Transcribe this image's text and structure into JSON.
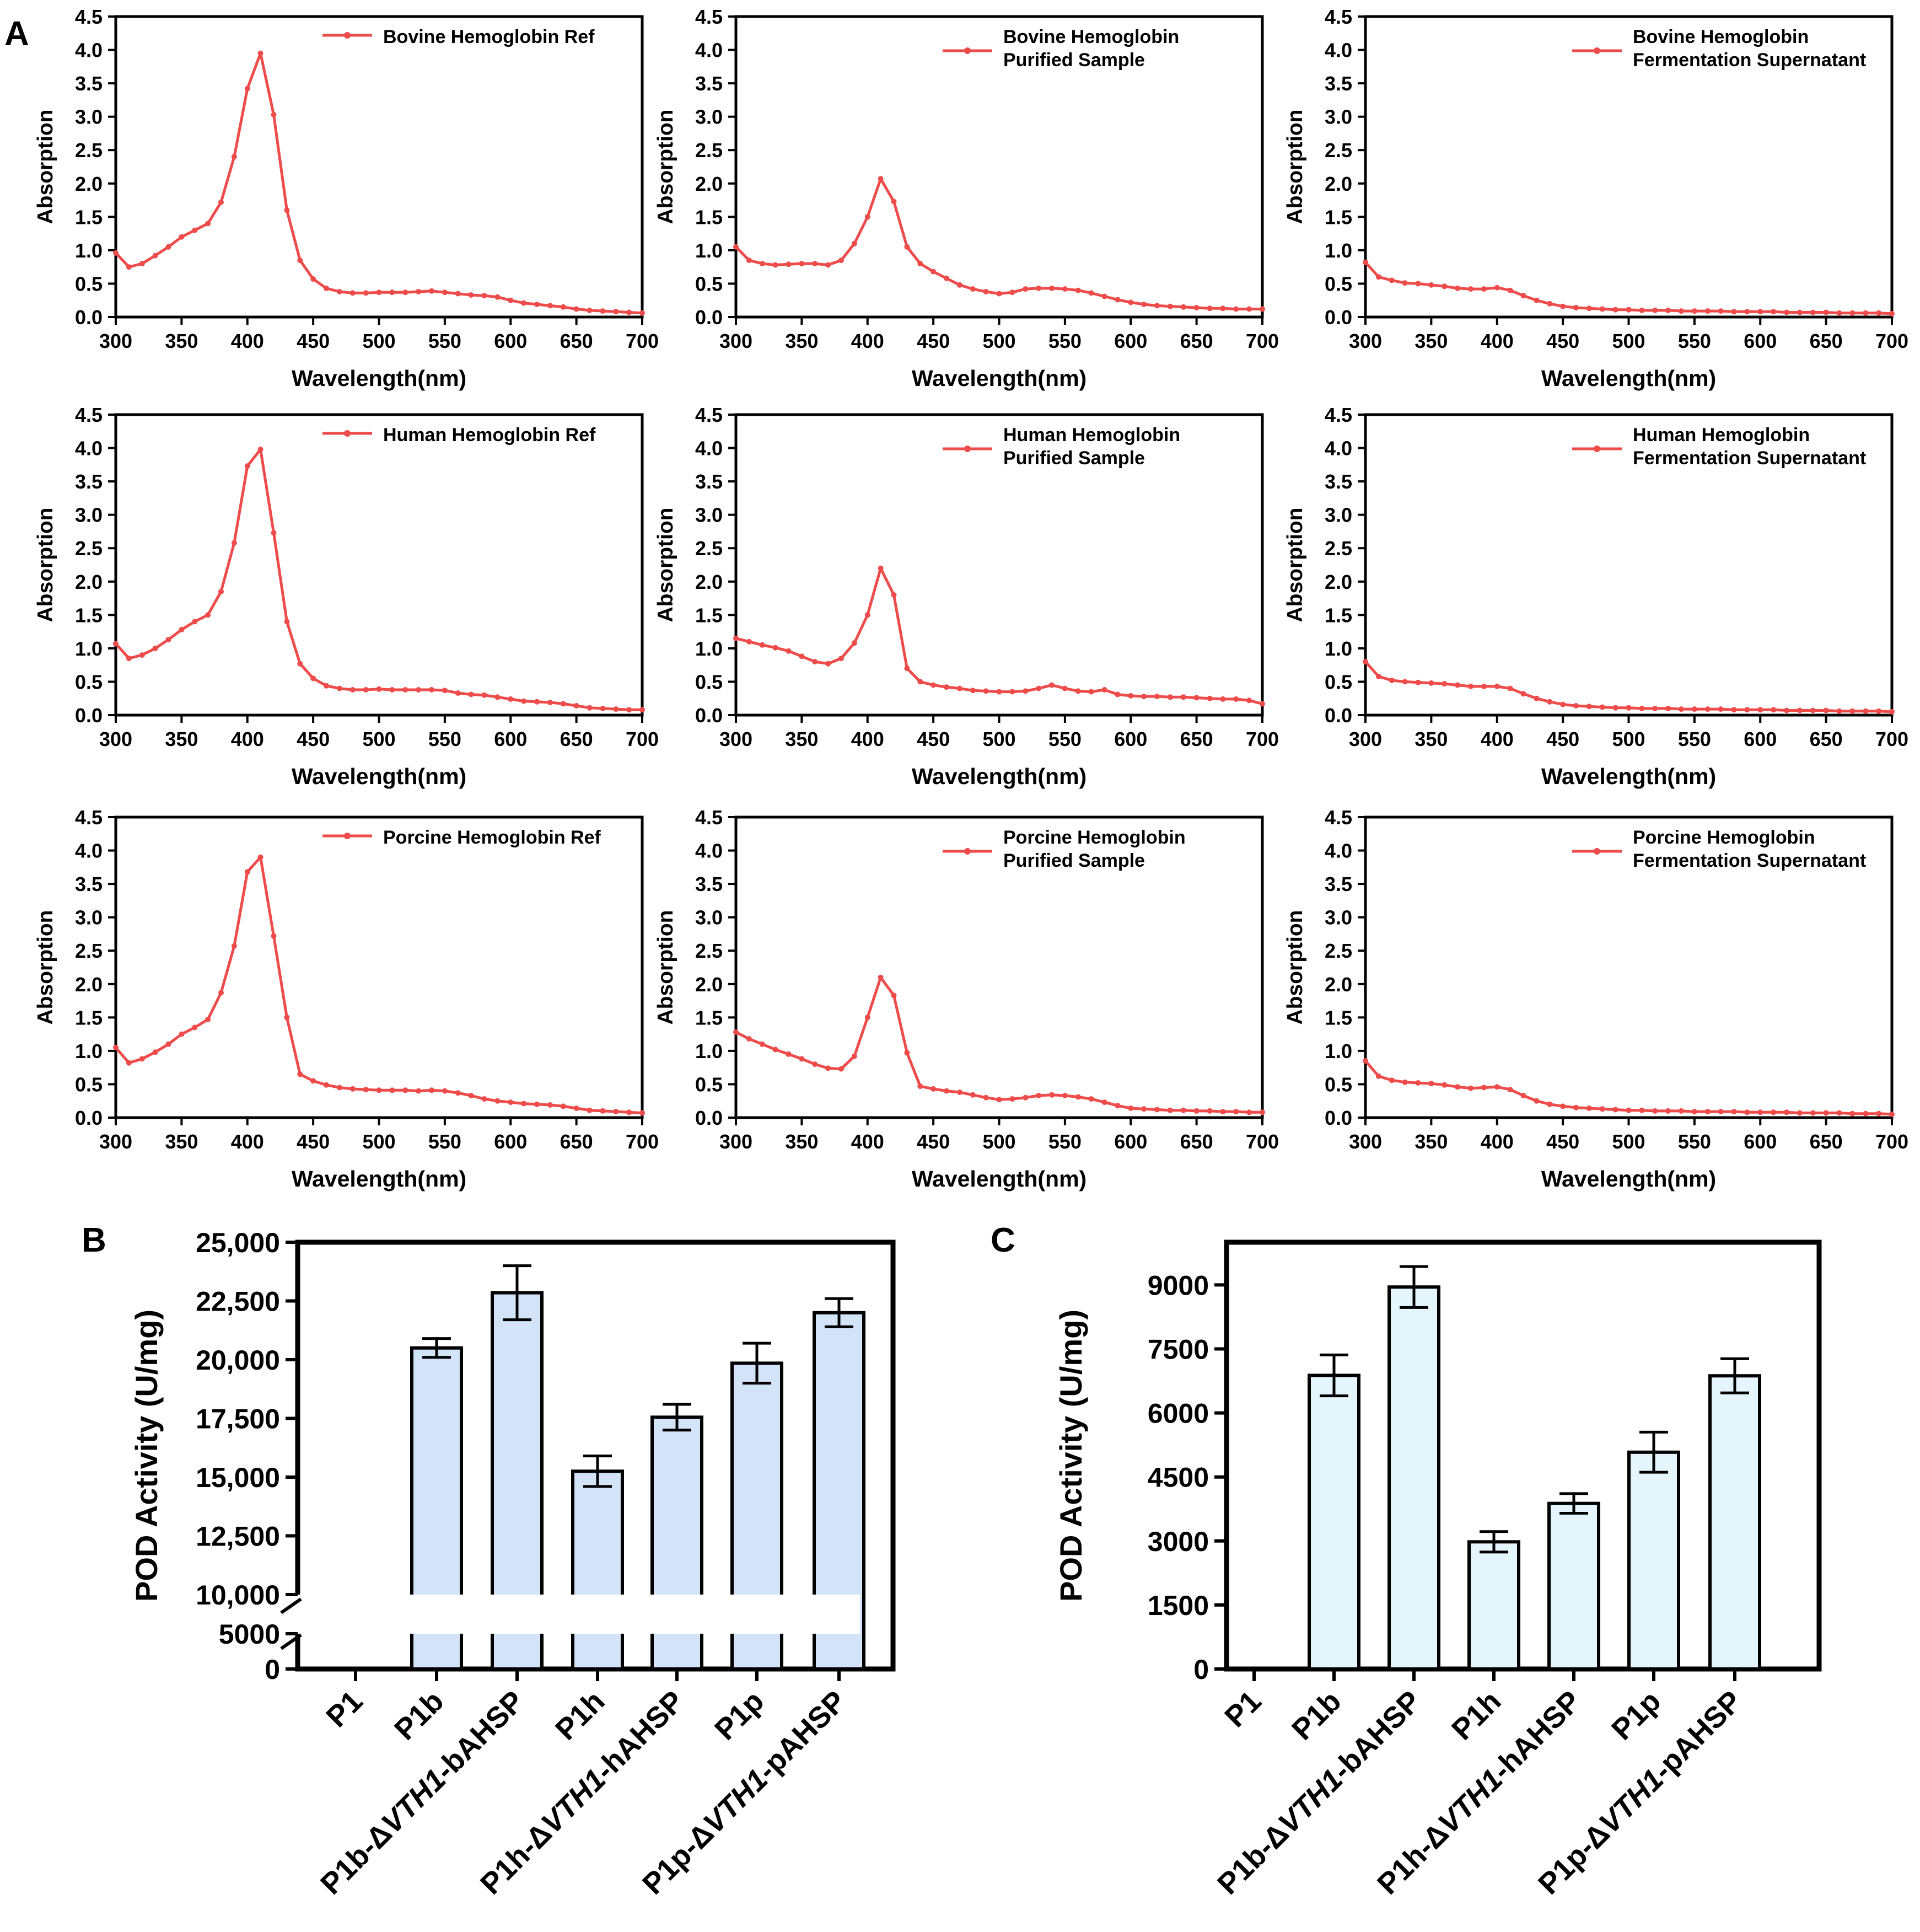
{
  "colors": {
    "line": "#EE4B4B",
    "barB": "#D3E3F8",
    "barC": "#E4F5FC",
    "axis": "#000000"
  },
  "panel_labels": {
    "A": "A",
    "B": "B",
    "C": "C"
  },
  "spectra_common": {
    "xlabel": "Wavelength(nm)",
    "ylabel": "Absorption",
    "xticks": [
      "300",
      "350",
      "400",
      "450",
      "500",
      "550",
      "600",
      "650",
      "700"
    ],
    "yticks": [
      "0.0",
      "0.5",
      "1.0",
      "1.5",
      "2.0",
      "2.5",
      "3.0",
      "3.5",
      "4.0",
      "4.5"
    ],
    "xlim": [
      300,
      700
    ],
    "ylim": [
      0,
      4.5
    ]
  },
  "chart_data": [
    {
      "type": "line",
      "legend": [
        "Bovine Hemoglobin Ref"
      ],
      "x_start": 300,
      "x_step": 10,
      "values": [
        0.96,
        0.75,
        0.8,
        0.92,
        1.05,
        1.2,
        1.3,
        1.4,
        1.72,
        2.4,
        3.42,
        3.95,
        3.03,
        1.6,
        0.85,
        0.57,
        0.43,
        0.38,
        0.36,
        0.36,
        0.37,
        0.37,
        0.37,
        0.38,
        0.39,
        0.37,
        0.35,
        0.33,
        0.32,
        0.3,
        0.25,
        0.21,
        0.19,
        0.17,
        0.15,
        0.12,
        0.1,
        0.09,
        0.08,
        0.07,
        0.06
      ]
    },
    {
      "type": "line",
      "legend": [
        "Bovine Hemoglobin",
        "Purified Sample"
      ],
      "x_start": 300,
      "x_step": 10,
      "values": [
        1.05,
        0.85,
        0.8,
        0.78,
        0.79,
        0.8,
        0.8,
        0.78,
        0.85,
        1.1,
        1.5,
        2.07,
        1.73,
        1.05,
        0.8,
        0.68,
        0.58,
        0.48,
        0.42,
        0.38,
        0.35,
        0.37,
        0.42,
        0.43,
        0.43,
        0.42,
        0.4,
        0.36,
        0.31,
        0.26,
        0.22,
        0.19,
        0.17,
        0.16,
        0.15,
        0.14,
        0.13,
        0.13,
        0.12,
        0.12,
        0.12
      ]
    },
    {
      "type": "line",
      "legend": [
        "Bovine Hemoglobin",
        "Fermentation Supernatant"
      ],
      "x_start": 300,
      "x_step": 10,
      "values": [
        0.82,
        0.6,
        0.55,
        0.51,
        0.5,
        0.48,
        0.46,
        0.43,
        0.42,
        0.42,
        0.44,
        0.4,
        0.32,
        0.25,
        0.2,
        0.16,
        0.14,
        0.13,
        0.12,
        0.11,
        0.11,
        0.1,
        0.1,
        0.1,
        0.09,
        0.09,
        0.09,
        0.09,
        0.08,
        0.08,
        0.08,
        0.08,
        0.07,
        0.07,
        0.07,
        0.07,
        0.06,
        0.06,
        0.06,
        0.06,
        0.05
      ]
    },
    {
      "type": "line",
      "legend": [
        "Human Hemoglobin Ref"
      ],
      "x_start": 300,
      "x_step": 10,
      "values": [
        1.07,
        0.85,
        0.9,
        1.0,
        1.13,
        1.28,
        1.4,
        1.5,
        1.85,
        2.58,
        3.73,
        3.98,
        2.73,
        1.4,
        0.77,
        0.55,
        0.44,
        0.4,
        0.38,
        0.38,
        0.39,
        0.38,
        0.38,
        0.38,
        0.38,
        0.37,
        0.33,
        0.31,
        0.3,
        0.27,
        0.24,
        0.21,
        0.2,
        0.19,
        0.17,
        0.14,
        0.11,
        0.1,
        0.09,
        0.08,
        0.08
      ]
    },
    {
      "type": "line",
      "legend": [
        "Human Hemoglobin",
        "Purified Sample"
      ],
      "x_start": 300,
      "x_step": 10,
      "values": [
        1.15,
        1.1,
        1.05,
        1.01,
        0.96,
        0.88,
        0.8,
        0.77,
        0.85,
        1.08,
        1.5,
        2.2,
        1.8,
        0.7,
        0.5,
        0.45,
        0.42,
        0.4,
        0.37,
        0.36,
        0.35,
        0.35,
        0.36,
        0.4,
        0.45,
        0.4,
        0.36,
        0.35,
        0.38,
        0.31,
        0.29,
        0.28,
        0.28,
        0.27,
        0.27,
        0.26,
        0.25,
        0.24,
        0.24,
        0.22,
        0.17
      ]
    },
    {
      "type": "line",
      "legend": [
        "Human Hemoglobin",
        "Fermentation Supernatant"
      ],
      "x_start": 300,
      "x_step": 10,
      "values": [
        0.8,
        0.58,
        0.52,
        0.5,
        0.49,
        0.48,
        0.47,
        0.45,
        0.43,
        0.43,
        0.43,
        0.4,
        0.32,
        0.25,
        0.2,
        0.16,
        0.14,
        0.13,
        0.12,
        0.11,
        0.11,
        0.1,
        0.1,
        0.1,
        0.09,
        0.09,
        0.09,
        0.09,
        0.08,
        0.08,
        0.08,
        0.08,
        0.07,
        0.07,
        0.07,
        0.07,
        0.06,
        0.06,
        0.06,
        0.06,
        0.05
      ]
    },
    {
      "type": "line",
      "legend": [
        "Porcine Hemoglobin Ref"
      ],
      "x_start": 300,
      "x_step": 10,
      "values": [
        1.05,
        0.82,
        0.88,
        0.98,
        1.1,
        1.25,
        1.35,
        1.47,
        1.87,
        2.57,
        3.68,
        3.9,
        2.72,
        1.5,
        0.65,
        0.55,
        0.49,
        0.45,
        0.43,
        0.42,
        0.41,
        0.41,
        0.41,
        0.4,
        0.41,
        0.4,
        0.37,
        0.33,
        0.28,
        0.25,
        0.23,
        0.21,
        0.2,
        0.19,
        0.17,
        0.14,
        0.11,
        0.1,
        0.09,
        0.08,
        0.07
      ]
    },
    {
      "type": "line",
      "legend": [
        "Porcine Hemoglobin",
        "Purified Sample"
      ],
      "x_start": 300,
      "x_step": 10,
      "values": [
        1.28,
        1.18,
        1.1,
        1.02,
        0.95,
        0.88,
        0.8,
        0.74,
        0.73,
        0.92,
        1.5,
        2.1,
        1.83,
        0.97,
        0.47,
        0.43,
        0.4,
        0.38,
        0.34,
        0.3,
        0.27,
        0.28,
        0.3,
        0.33,
        0.34,
        0.33,
        0.31,
        0.28,
        0.23,
        0.18,
        0.14,
        0.13,
        0.12,
        0.11,
        0.11,
        0.1,
        0.1,
        0.09,
        0.09,
        0.08,
        0.08
      ]
    },
    {
      "type": "line",
      "legend": [
        "Porcine Hemoglobin",
        "Fermentation Supernatant"
      ],
      "x_start": 300,
      "x_step": 10,
      "values": [
        0.85,
        0.62,
        0.56,
        0.53,
        0.52,
        0.51,
        0.49,
        0.46,
        0.44,
        0.45,
        0.46,
        0.42,
        0.33,
        0.25,
        0.2,
        0.17,
        0.15,
        0.14,
        0.13,
        0.12,
        0.11,
        0.11,
        0.1,
        0.1,
        0.1,
        0.09,
        0.09,
        0.09,
        0.09,
        0.08,
        0.08,
        0.08,
        0.08,
        0.07,
        0.07,
        0.07,
        0.07,
        0.06,
        0.06,
        0.06,
        0.05
      ]
    },
    {
      "type": "bar",
      "panel": "B",
      "ylabel": "POD Activity (U/mg)",
      "categories": [
        "P1",
        "P1b",
        "P1b-ΔVTH1-bAHSP",
        "P1h",
        "P1h-ΔVTH1-hAHSP",
        "P1p",
        "P1p-ΔVTH1-pAHSP"
      ],
      "category_parts": [
        [
          "P1",
          "",
          ""
        ],
        [
          "P1b",
          "",
          ""
        ],
        [
          "P1b-Δ",
          "VTH1",
          "-bAHSP"
        ],
        [
          "P1h",
          "",
          ""
        ],
        [
          "P1h-Δ",
          "VTH1",
          "-hAHSP"
        ],
        [
          "P1p",
          "",
          ""
        ],
        [
          "P1p-Δ",
          "VTH1",
          "-pAHSP"
        ]
      ],
      "values": [
        0,
        20500,
        22850,
        15250,
        17550,
        19850,
        22000
      ],
      "errors": [
        0,
        400,
        1150,
        650,
        550,
        850,
        600
      ],
      "axis_break": [
        5000,
        10000
      ],
      "yticks_values": [
        0,
        5000,
        10000,
        12500,
        15000,
        17500,
        20000,
        22500,
        25000
      ],
      "yticks": [
        "0",
        "5000",
        "10,000",
        "12,500",
        "15,000",
        "17,500",
        "20,000",
        "22,500",
        "25,000"
      ]
    },
    {
      "type": "bar",
      "panel": "C",
      "ylabel": "POD Activity (U/mg)",
      "categories": [
        "P1",
        "P1b",
        "P1b-ΔVTH1-bAHSP",
        "P1h",
        "P1h-ΔVTH1-hAHSP",
        "P1p",
        "P1p-ΔVTH1-pAHSP"
      ],
      "category_parts": [
        [
          "P1",
          "",
          ""
        ],
        [
          "P1b",
          "",
          ""
        ],
        [
          "P1b-Δ",
          "VTH1",
          "-bAHSP"
        ],
        [
          "P1h",
          "",
          ""
        ],
        [
          "P1h-Δ",
          "VTH1",
          "-hAHSP"
        ],
        [
          "P1p",
          "",
          ""
        ],
        [
          "P1p-Δ",
          "VTH1",
          "-pAHSP"
        ]
      ],
      "values": [
        0,
        6880,
        8950,
        2980,
        3880,
        5080,
        6870
      ],
      "errors": [
        0,
        480,
        480,
        240,
        230,
        470,
        400
      ],
      "ylim": [
        0,
        10000
      ],
      "yticks_values": [
        0,
        1500,
        3000,
        4500,
        6000,
        7500,
        9000
      ],
      "yticks": [
        "0",
        "1500",
        "3000",
        "4500",
        "6000",
        "7500",
        "9000"
      ]
    }
  ]
}
